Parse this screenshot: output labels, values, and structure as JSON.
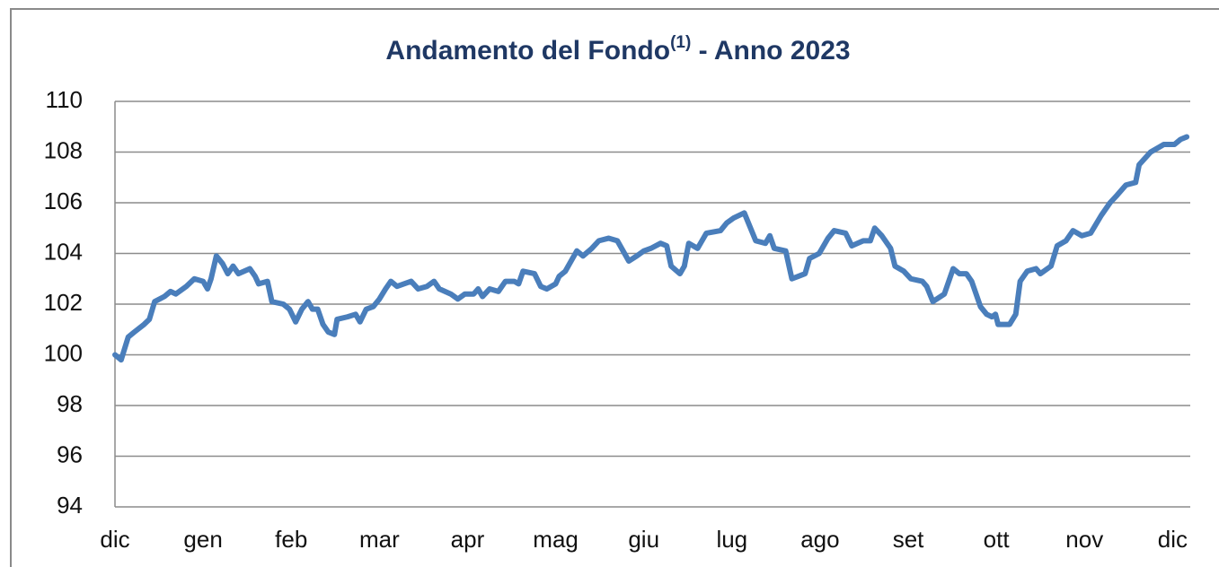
{
  "chart_data": {
    "type": "line",
    "title": [
      "Andamento del Fondo",
      "(1)",
      " - Anno 2023"
    ],
    "x": [
      0,
      0.07,
      0.15,
      0.22,
      0.33,
      0.39,
      0.45,
      0.56,
      0.63,
      0.69,
      0.81,
      0.9,
      1.0,
      1.05,
      1.09,
      1.15,
      1.22,
      1.28,
      1.34,
      1.4,
      1.53,
      1.59,
      1.63,
      1.73,
      1.78,
      1.91,
      1.98,
      2.05,
      2.12,
      2.19,
      2.24,
      2.3,
      2.36,
      2.42,
      2.49,
      2.52,
      2.64,
      2.73,
      2.78,
      2.85,
      2.93,
      3.0,
      3.07,
      3.13,
      3.2,
      3.36,
      3.44,
      3.54,
      3.62,
      3.68,
      3.81,
      3.89,
      3.97,
      4.07,
      4.12,
      4.17,
      4.25,
      4.35,
      4.43,
      4.53,
      4.58,
      4.63,
      4.76,
      4.83,
      4.9,
      5.0,
      5.04,
      5.11,
      5.24,
      5.31,
      5.41,
      5.49,
      5.6,
      5.7,
      5.83,
      5.92,
      6.0,
      6.08,
      6.19,
      6.26,
      6.31,
      6.41,
      6.46,
      6.51,
      6.61,
      6.71,
      6.87,
      6.94,
      7.02,
      7.14,
      7.27,
      7.38,
      7.43,
      7.48,
      7.61,
      7.68,
      7.83,
      7.88,
      7.99,
      8.09,
      8.16,
      8.29,
      8.36,
      8.49,
      8.57,
      8.62,
      8.7,
      8.8,
      8.85,
      8.95,
      9.03,
      9.16,
      9.21,
      9.28,
      9.41,
      9.51,
      9.58,
      9.66,
      9.72,
      9.82,
      9.89,
      9.95,
      9.99,
      10.02,
      10.15,
      10.22,
      10.27,
      10.35,
      10.45,
      10.5,
      10.62,
      10.69,
      10.79,
      10.87,
      10.97,
      11.07,
      11.19,
      11.29,
      11.37,
      11.47,
      11.58,
      11.62,
      11.75,
      11.85,
      11.9,
      12.02,
      12.09,
      12.16
    ],
    "series": [
      {
        "name": "Fondo",
        "color": "#4a7ebb",
        "values": [
          100.0,
          99.8,
          100.7,
          100.9,
          101.2,
          101.4,
          102.1,
          102.3,
          102.5,
          102.4,
          102.7,
          103.0,
          102.9,
          102.6,
          103.0,
          103.9,
          103.6,
          103.2,
          103.5,
          103.2,
          103.4,
          103.1,
          102.8,
          102.9,
          102.1,
          102.0,
          101.8,
          101.3,
          101.8,
          102.1,
          101.8,
          101.8,
          101.2,
          100.9,
          100.8,
          101.4,
          101.5,
          101.6,
          101.3,
          101.8,
          101.9,
          102.2,
          102.6,
          102.9,
          102.7,
          102.9,
          102.6,
          102.7,
          102.9,
          102.6,
          102.4,
          102.2,
          102.4,
          102.4,
          102.6,
          102.3,
          102.6,
          102.5,
          102.9,
          102.9,
          102.8,
          103.3,
          103.2,
          102.7,
          102.6,
          102.8,
          103.1,
          103.3,
          104.1,
          103.9,
          104.2,
          104.5,
          104.6,
          104.5,
          103.7,
          103.9,
          104.1,
          104.2,
          104.4,
          104.3,
          103.5,
          103.2,
          103.5,
          104.4,
          104.2,
          104.8,
          104.9,
          105.2,
          105.4,
          105.6,
          104.5,
          104.4,
          104.7,
          104.2,
          104.1,
          103.0,
          103.2,
          103.8,
          104.0,
          104.6,
          104.9,
          104.8,
          104.3,
          104.5,
          104.5,
          105.0,
          104.7,
          104.2,
          103.5,
          103.3,
          103.0,
          102.9,
          102.7,
          102.1,
          102.4,
          103.4,
          103.2,
          103.2,
          102.9,
          101.9,
          101.6,
          101.5,
          101.6,
          101.2,
          101.2,
          101.6,
          102.9,
          103.3,
          103.4,
          103.2,
          103.5,
          104.3,
          104.5,
          104.9,
          104.7,
          104.8,
          105.5,
          106.0,
          106.3,
          106.7,
          106.8,
          107.5,
          108.0,
          108.2,
          108.3,
          108.3,
          108.5,
          108.6
        ]
      }
    ],
    "xlim": [
      0,
      12.2
    ],
    "xticks": [
      {
        "value": 0,
        "label": "dic"
      },
      {
        "value": 1,
        "label": "gen"
      },
      {
        "value": 2,
        "label": "feb"
      },
      {
        "value": 3,
        "label": "mar"
      },
      {
        "value": 4,
        "label": "apr"
      },
      {
        "value": 5,
        "label": "mag"
      },
      {
        "value": 6,
        "label": "giu"
      },
      {
        "value": 7,
        "label": "lug"
      },
      {
        "value": 8,
        "label": "ago"
      },
      {
        "value": 9,
        "label": "set"
      },
      {
        "value": 10,
        "label": "ott"
      },
      {
        "value": 11,
        "label": "nov"
      },
      {
        "value": 12,
        "label": "dic"
      }
    ],
    "ylim": [
      94,
      110
    ],
    "yticks": [
      94,
      96,
      98,
      100,
      102,
      104,
      106,
      108,
      110
    ],
    "grid": true
  }
}
